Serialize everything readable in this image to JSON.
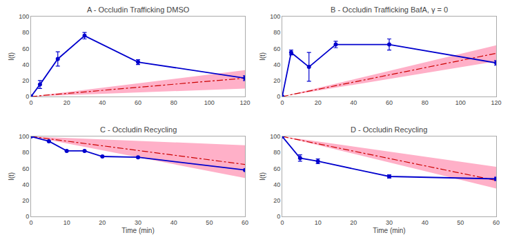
{
  "chart_data": [
    {
      "type": "line",
      "title": "A - Occludin Trafficking DMSO",
      "ylabel": "I(t)",
      "xlim": [
        0,
        120
      ],
      "ylim": [
        0,
        100
      ],
      "xticks": [
        0,
        20,
        40,
        60,
        80,
        100,
        120
      ],
      "yticks": [
        0,
        20,
        40,
        60,
        80,
        100
      ],
      "grid": false,
      "series": [
        {
          "type": "band",
          "color": "#FFB0C8",
          "x": [
            0,
            120
          ],
          "lower": [
            0,
            10
          ],
          "upper": [
            0,
            33
          ]
        },
        {
          "type": "line",
          "color": "#CC0000",
          "line_style": "dashdot",
          "x": [
            0,
            120
          ],
          "values": [
            0,
            23
          ]
        },
        {
          "type": "line",
          "color": "#0000CD",
          "marker": "circle",
          "x": [
            0,
            5,
            15,
            30,
            60,
            120
          ],
          "values": [
            0,
            15,
            47,
            76,
            43,
            23
          ],
          "error": [
            0,
            5,
            9,
            4,
            3,
            3
          ]
        }
      ]
    },
    {
      "type": "line",
      "title": "B - Occludin Trafficking BafA, γ = 0",
      "ylabel": "I(t)",
      "xlim": [
        0,
        120
      ],
      "ylim": [
        0,
        100
      ],
      "xticks": [
        0,
        20,
        40,
        60,
        80,
        100,
        120
      ],
      "yticks": [
        0,
        20,
        40,
        60,
        80,
        100
      ],
      "grid": false,
      "series": [
        {
          "type": "band",
          "color": "#FFB0C8",
          "x": [
            0,
            120
          ],
          "lower": [
            0,
            44
          ],
          "upper": [
            0,
            64
          ]
        },
        {
          "type": "line",
          "color": "#CC0000",
          "line_style": "dashdot",
          "x": [
            0,
            120
          ],
          "values": [
            0,
            54
          ]
        },
        {
          "type": "line",
          "color": "#0000CD",
          "marker": "circle",
          "x": [
            0,
            5,
            15,
            30,
            60,
            120
          ],
          "values": [
            0,
            55,
            37,
            65,
            65,
            42
          ],
          "error": [
            0,
            3,
            18,
            4,
            7,
            3
          ]
        }
      ]
    },
    {
      "type": "line",
      "title": "C - Occludin Recycling",
      "xlabel": "Time (min)",
      "ylabel": "I(t)",
      "xlim": [
        0,
        60
      ],
      "ylim": [
        0,
        100
      ],
      "xticks": [
        0,
        10,
        20,
        30,
        40,
        50,
        60
      ],
      "yticks": [
        0,
        20,
        40,
        60,
        80,
        100
      ],
      "grid": false,
      "series": [
        {
          "type": "band",
          "color": "#FFB0C8",
          "x": [
            0,
            60
          ],
          "lower": [
            100,
            48
          ],
          "upper": [
            100,
            89
          ]
        },
        {
          "type": "line",
          "color": "#CC0000",
          "line_style": "dashdot",
          "x": [
            0,
            60
          ],
          "values": [
            100,
            65
          ]
        },
        {
          "type": "line",
          "color": "#0000CD",
          "marker": "circle",
          "x": [
            0,
            5,
            10,
            15,
            20,
            30,
            60
          ],
          "values": [
            100,
            94,
            82,
            82,
            75,
            74,
            58
          ],
          "error": [
            0,
            0,
            0,
            0,
            0,
            0,
            0
          ]
        }
      ]
    },
    {
      "type": "line",
      "title": "D - Occludin Recycling",
      "xlabel": "Time (min)",
      "ylabel": "I(t)",
      "xlim": [
        0,
        60
      ],
      "ylim": [
        0,
        100
      ],
      "xticks": [
        0,
        10,
        20,
        30,
        40,
        50,
        60
      ],
      "yticks": [
        0,
        20,
        40,
        60,
        80,
        100
      ],
      "grid": false,
      "series": [
        {
          "type": "band",
          "color": "#FFB0C8",
          "x": [
            0,
            60
          ],
          "lower": [
            100,
            35
          ],
          "upper": [
            100,
            62
          ]
        },
        {
          "type": "line",
          "color": "#CC0000",
          "line_style": "dashdot",
          "x": [
            0,
            60
          ],
          "values": [
            100,
            45
          ]
        },
        {
          "type": "line",
          "color": "#0000CD",
          "marker": "circle",
          "x": [
            0,
            5,
            10,
            30,
            60
          ],
          "values": [
            100,
            73,
            69,
            50,
            47
          ],
          "error": [
            0,
            4,
            3,
            2,
            2
          ]
        }
      ]
    }
  ]
}
